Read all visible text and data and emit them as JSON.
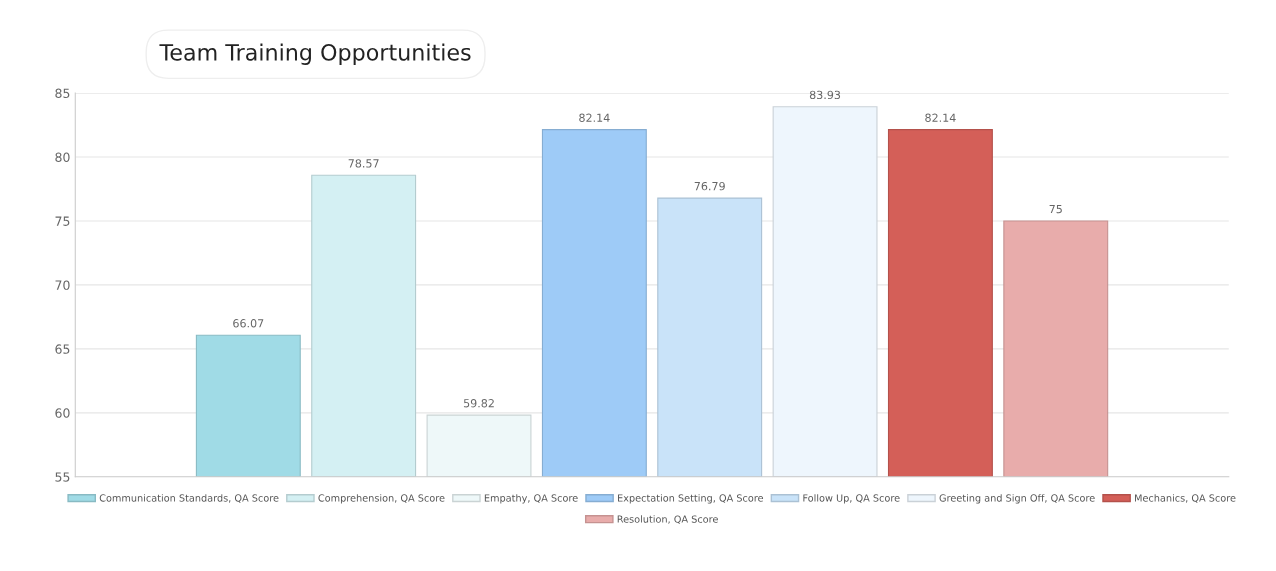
{
  "chart_data": {
    "type": "bar",
    "title": "Team Training Opportunities",
    "categories": [
      null
    ],
    "series": [
      {
        "name": "Communication Standards, QA Score",
        "color": "#a0dbe6",
        "values": [
          66.07
        ]
      },
      {
        "name": "Comprehension, QA Score",
        "color": "#d4f0f3",
        "values": [
          78.57
        ]
      },
      {
        "name": "Empathy, QA Score",
        "color": "#eef8f9",
        "values": [
          59.82
        ]
      },
      {
        "name": "Expectation Setting, QA Score",
        "color": "#9ecbf7",
        "values": [
          82.14
        ]
      },
      {
        "name": "Follow Up, QA Score",
        "color": "#c9e3f9",
        "values": [
          76.79
        ]
      },
      {
        "name": "Greeting and Sign Off, QA Score",
        "color": "#eef6fd",
        "values": [
          83.93
        ]
      },
      {
        "name": "Mechanics, QA Score",
        "color": "#d45f58",
        "values": [
          82.14
        ]
      },
      {
        "name": "Resolution, QA Score",
        "color": "#e8acab",
        "values": [
          75
        ]
      }
    ],
    "ylim": [
      55,
      85
    ],
    "yticks": [
      55,
      60,
      65,
      70,
      75,
      80,
      85
    ],
    "grid": "y",
    "legend": "bottom",
    "data_labels": true
  }
}
